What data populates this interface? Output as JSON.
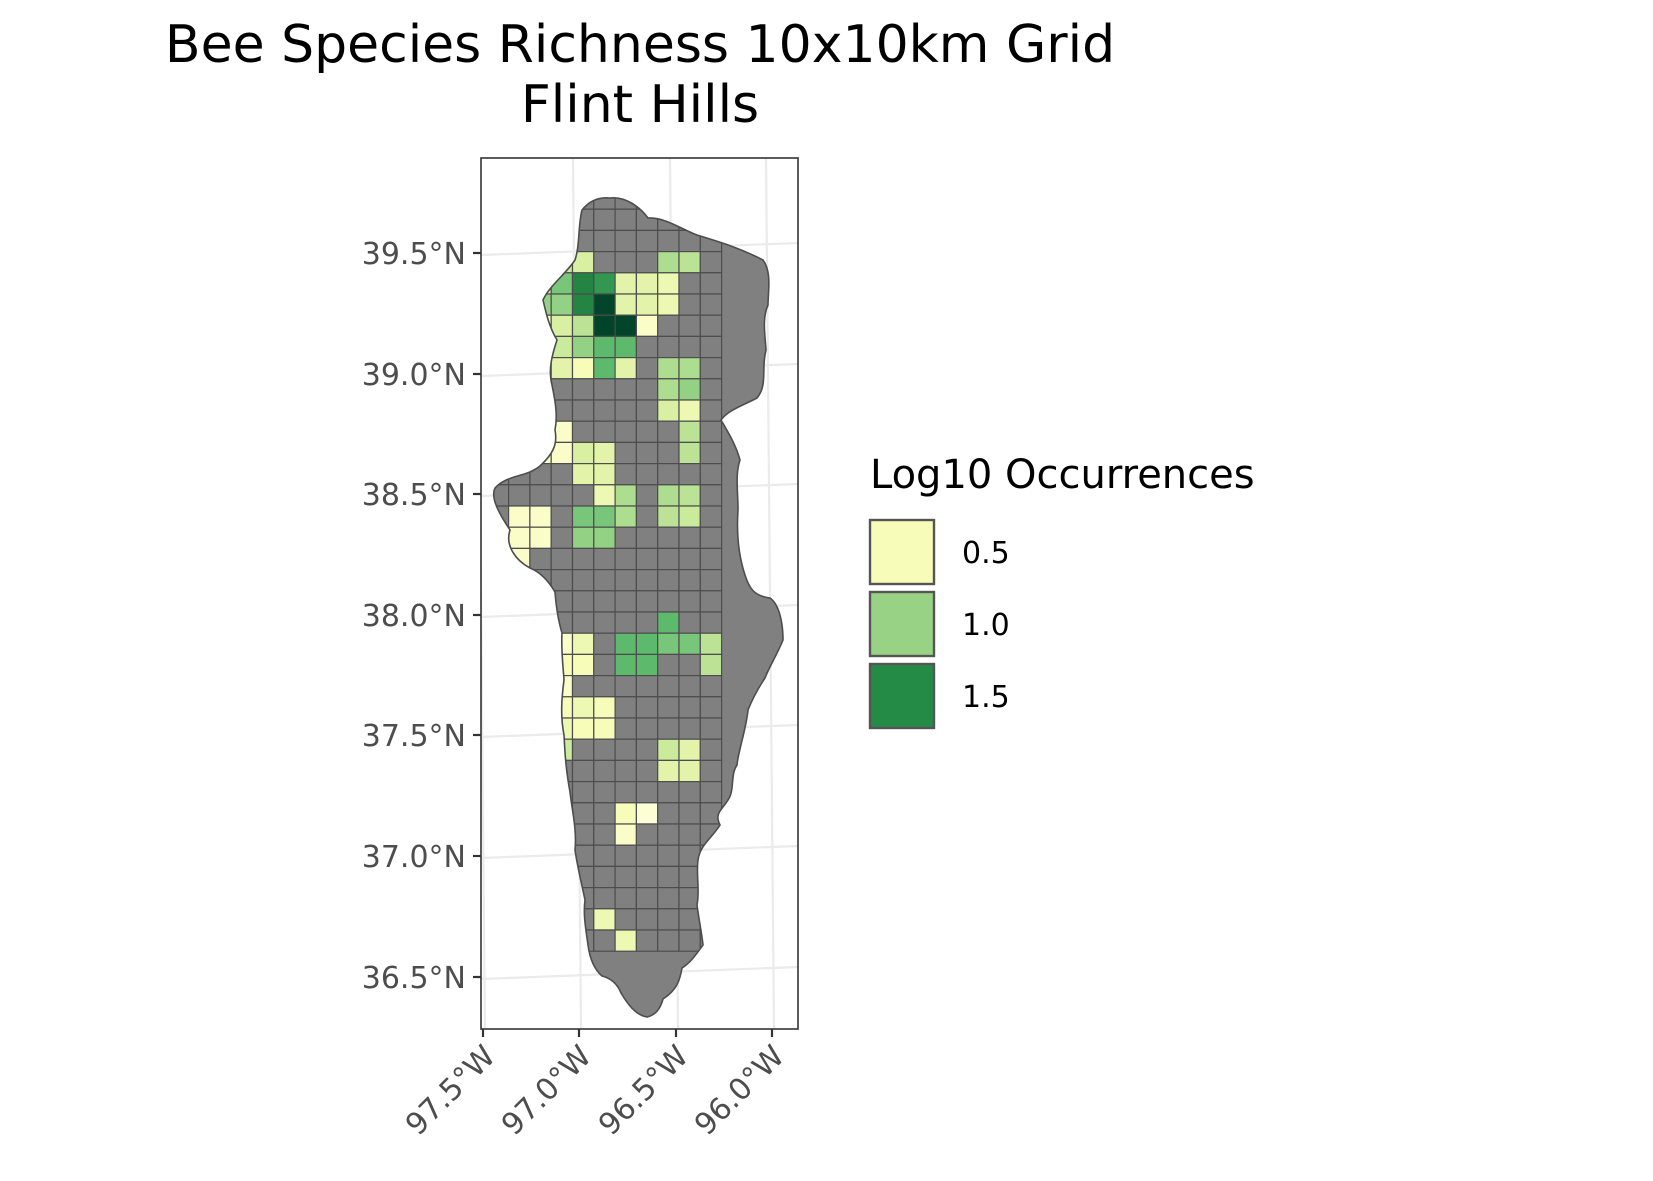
{
  "title": {
    "line1": "Bee Species Richness 10x10km Grid",
    "line2": "Flint Hills"
  },
  "legend": {
    "title": "Log10 Occurrences",
    "items": [
      {
        "label": "0.5",
        "color": "#f7fcb9"
      },
      {
        "label": "1.0",
        "color": "#98d385"
      },
      {
        "label": "1.5",
        "color": "#238b45"
      }
    ]
  },
  "colors": {
    "no_data_cell": "#808080",
    "cell_border": "#4d4d4d",
    "panel_border": "#333333",
    "graticule": "#ebebeb",
    "axis_text": "#4d4d4d",
    "scale_low": "#ffffe5",
    "scale_high": "#004529"
  },
  "chart_data": {
    "type": "heatmap",
    "map_region": "Flint Hills",
    "cell_size": "10x10km",
    "value_name": "Log10 Occurrences",
    "y_axis": {
      "ticks": [
        39.5,
        39.0,
        38.5,
        38.0,
        37.5,
        37.0,
        36.5
      ],
      "labels": [
        "39.5°N",
        "39.0°N",
        "38.5°N",
        "38.0°N",
        "37.5°N",
        "37.0°N",
        "36.5°N"
      ]
    },
    "x_axis": {
      "ticks": [
        -97.5,
        -97.0,
        -96.5,
        -96.0
      ],
      "labels": [
        "97.5°W",
        "97.0°W",
        "96.5°W",
        "96.0°W"
      ]
    },
    "grid_columns_lon": [
      -97.41,
      -97.3,
      -97.2,
      -97.09,
      -96.98,
      -96.87,
      -96.77,
      -96.66,
      -96.55,
      -96.45,
      -96.34,
      -96.23
    ],
    "grid_rows_lat": [
      39.72,
      39.63,
      39.54,
      39.46,
      39.37,
      39.28,
      39.19,
      39.1,
      39.01,
      38.93,
      38.84,
      38.75,
      38.66,
      38.57,
      38.48,
      38.39,
      38.31,
      38.22,
      38.13,
      38.04,
      37.95,
      37.86,
      37.77,
      37.68,
      37.59,
      37.5,
      37.42,
      37.33,
      37.24,
      37.15,
      37.06,
      36.97,
      36.88,
      36.79,
      36.7,
      36.62
    ],
    "occupied_cells": [
      {
        "row": 3,
        "col": 4,
        "value": 0.7
      },
      {
        "row": 3,
        "col": 5,
        "value": 0.6
      },
      {
        "row": 3,
        "col": 9,
        "value": 0.9
      },
      {
        "row": 3,
        "col": 10,
        "value": 0.8
      },
      {
        "row": 4,
        "col": 3,
        "value": 0.6
      },
      {
        "row": 4,
        "col": 4,
        "value": 1.1
      },
      {
        "row": 4,
        "col": 5,
        "value": 1.5
      },
      {
        "row": 4,
        "col": 6,
        "value": 1.4
      },
      {
        "row": 4,
        "col": 7,
        "value": 0.5
      },
      {
        "row": 4,
        "col": 8,
        "value": 0.5
      },
      {
        "row": 4,
        "col": 9,
        "value": 0.4
      },
      {
        "row": 5,
        "col": 2,
        "value": 0.3
      },
      {
        "row": 5,
        "col": 3,
        "value": 1.0
      },
      {
        "row": 5,
        "col": 4,
        "value": 1.0
      },
      {
        "row": 5,
        "col": 5,
        "value": 1.5
      },
      {
        "row": 5,
        "col": 6,
        "value": 2.0
      },
      {
        "row": 5,
        "col": 7,
        "value": 0.5
      },
      {
        "row": 5,
        "col": 8,
        "value": 0.5
      },
      {
        "row": 5,
        "col": 9,
        "value": 0.4
      },
      {
        "row": 6,
        "col": 3,
        "value": 0.3
      },
      {
        "row": 6,
        "col": 4,
        "value": 0.6
      },
      {
        "row": 6,
        "col": 5,
        "value": 0.8
      },
      {
        "row": 6,
        "col": 6,
        "value": 2.0
      },
      {
        "row": 6,
        "col": 7,
        "value": 2.0
      },
      {
        "row": 6,
        "col": 8,
        "value": 0.2
      },
      {
        "row": 7,
        "col": 3,
        "value": 0.5
      },
      {
        "row": 7,
        "col": 4,
        "value": 0.7
      },
      {
        "row": 7,
        "col": 5,
        "value": 1.0
      },
      {
        "row": 7,
        "col": 6,
        "value": 1.2
      },
      {
        "row": 7,
        "col": 7,
        "value": 1.2
      },
      {
        "row": 8,
        "col": 3,
        "value": 0.5
      },
      {
        "row": 8,
        "col": 4,
        "value": 0.5
      },
      {
        "row": 8,
        "col": 5,
        "value": 0.3
      },
      {
        "row": 8,
        "col": 6,
        "value": 1.2
      },
      {
        "row": 8,
        "col": 7,
        "value": 0.5
      },
      {
        "row": 8,
        "col": 9,
        "value": 0.9
      },
      {
        "row": 8,
        "col": 10,
        "value": 0.9
      },
      {
        "row": 9,
        "col": 9,
        "value": 0.9
      },
      {
        "row": 9,
        "col": 10,
        "value": 1.0
      },
      {
        "row": 10,
        "col": 9,
        "value": 0.6
      },
      {
        "row": 10,
        "col": 10,
        "value": 0.4
      },
      {
        "row": 11,
        "col": 3,
        "value": 0.2
      },
      {
        "row": 11,
        "col": 4,
        "value": 0.2
      },
      {
        "row": 11,
        "col": 10,
        "value": 0.8
      },
      {
        "row": 12,
        "col": 3,
        "value": 0.2
      },
      {
        "row": 12,
        "col": 4,
        "value": 0.2
      },
      {
        "row": 12,
        "col": 5,
        "value": 0.6
      },
      {
        "row": 12,
        "col": 6,
        "value": 0.5
      },
      {
        "row": 12,
        "col": 10,
        "value": 0.8
      },
      {
        "row": 13,
        "col": 5,
        "value": 0.5
      },
      {
        "row": 13,
        "col": 6,
        "value": 0.5
      },
      {
        "row": 14,
        "col": 6,
        "value": 0.4
      },
      {
        "row": 14,
        "col": 7,
        "value": 0.9
      },
      {
        "row": 14,
        "col": 9,
        "value": 0.9
      },
      {
        "row": 14,
        "col": 10,
        "value": 0.8
      },
      {
        "row": 15,
        "col": 2,
        "value": 0.2
      },
      {
        "row": 15,
        "col": 3,
        "value": 0.2
      },
      {
        "row": 15,
        "col": 5,
        "value": 1.1
      },
      {
        "row": 15,
        "col": 6,
        "value": 1.1
      },
      {
        "row": 15,
        "col": 7,
        "value": 0.9
      },
      {
        "row": 15,
        "col": 9,
        "value": 0.8
      },
      {
        "row": 15,
        "col": 10,
        "value": 0.7
      },
      {
        "row": 16,
        "col": 2,
        "value": 0.2
      },
      {
        "row": 16,
        "col": 3,
        "value": 0.2
      },
      {
        "row": 16,
        "col": 5,
        "value": 1.0
      },
      {
        "row": 16,
        "col": 6,
        "value": 1.0
      },
      {
        "row": 17,
        "col": 1,
        "value": 0.2
      },
      {
        "row": 17,
        "col": 2,
        "value": 0.2
      },
      {
        "row": 18,
        "col": 2,
        "value": 0.1
      },
      {
        "row": 20,
        "col": 3,
        "value": 0.2
      },
      {
        "row": 20,
        "col": 9,
        "value": 1.2
      },
      {
        "row": 21,
        "col": 3,
        "value": 0.2
      },
      {
        "row": 21,
        "col": 4,
        "value": 0.2
      },
      {
        "row": 21,
        "col": 5,
        "value": 0.4
      },
      {
        "row": 21,
        "col": 7,
        "value": 1.2
      },
      {
        "row": 21,
        "col": 8,
        "value": 1.2
      },
      {
        "row": 21,
        "col": 9,
        "value": 1.1
      },
      {
        "row": 21,
        "col": 10,
        "value": 1.1
      },
      {
        "row": 21,
        "col": 11,
        "value": 0.8
      },
      {
        "row": 22,
        "col": 4,
        "value": 0.3
      },
      {
        "row": 22,
        "col": 5,
        "value": 0.3
      },
      {
        "row": 22,
        "col": 7,
        "value": 1.2
      },
      {
        "row": 22,
        "col": 8,
        "value": 1.2
      },
      {
        "row": 22,
        "col": 11,
        "value": 0.8
      },
      {
        "row": 23,
        "col": 4,
        "value": 0.2
      },
      {
        "row": 24,
        "col": 4,
        "value": 0.3
      },
      {
        "row": 24,
        "col": 5,
        "value": 0.4
      },
      {
        "row": 24,
        "col": 6,
        "value": 0.3
      },
      {
        "row": 25,
        "col": 3,
        "value": 0.7
      },
      {
        "row": 25,
        "col": 4,
        "value": 0.4
      },
      {
        "row": 25,
        "col": 5,
        "value": 0.3
      },
      {
        "row": 25,
        "col": 6,
        "value": 0.3
      },
      {
        "row": 26,
        "col": 3,
        "value": 0.7
      },
      {
        "row": 26,
        "col": 4,
        "value": 0.7
      },
      {
        "row": 26,
        "col": 9,
        "value": 0.7
      },
      {
        "row": 26,
        "col": 10,
        "value": 0.5
      },
      {
        "row": 27,
        "col": 9,
        "value": 0.5
      },
      {
        "row": 27,
        "col": 10,
        "value": 0.5
      },
      {
        "row": 29,
        "col": 7,
        "value": 0.3
      },
      {
        "row": 29,
        "col": 8,
        "value": 0.1
      },
      {
        "row": 30,
        "col": 7,
        "value": 0.2
      },
      {
        "row": 34,
        "col": 6,
        "value": 0.4
      },
      {
        "row": 35,
        "col": 7,
        "value": 0.4
      }
    ]
  }
}
